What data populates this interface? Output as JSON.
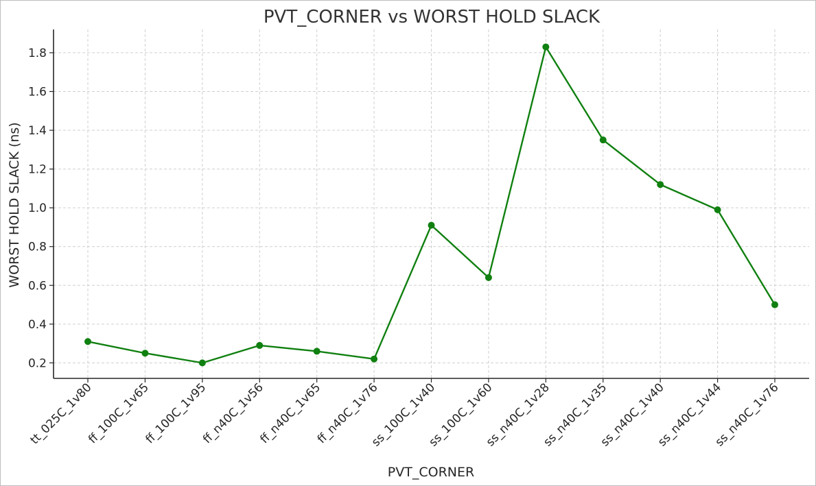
{
  "chart_data": {
    "type": "line",
    "title": "PVT_CORNER vs WORST HOLD SLACK",
    "xlabel": "PVT_CORNER",
    "ylabel": "WORST HOLD SLACK (ns)",
    "categories": [
      "tt_025C_1v80",
      "ff_100C_1v65",
      "ff_100C_1v95",
      "ff_n40C_1v56",
      "ff_n40C_1v65",
      "ff_n40C_1v76",
      "ss_100C_1v40",
      "ss_100C_1v60",
      "ss_n40C_1v28",
      "ss_n40C_1v35",
      "ss_n40C_1v40",
      "ss_n40C_1v44",
      "ss_n40C_1v76"
    ],
    "series": [
      {
        "values": [
          0.31,
          0.25,
          0.2,
          0.29,
          0.26,
          0.22,
          0.91,
          0.64,
          1.83,
          1.35,
          1.12,
          0.99,
          0.5
        ],
        "color": "#108010"
      }
    ],
    "ylim": [
      0.12,
      1.92
    ],
    "yticks": [
      0.2,
      0.4,
      0.6,
      0.8,
      1.0,
      1.2,
      1.4,
      1.6,
      1.8
    ],
    "grid": true,
    "marker": "circle"
  }
}
